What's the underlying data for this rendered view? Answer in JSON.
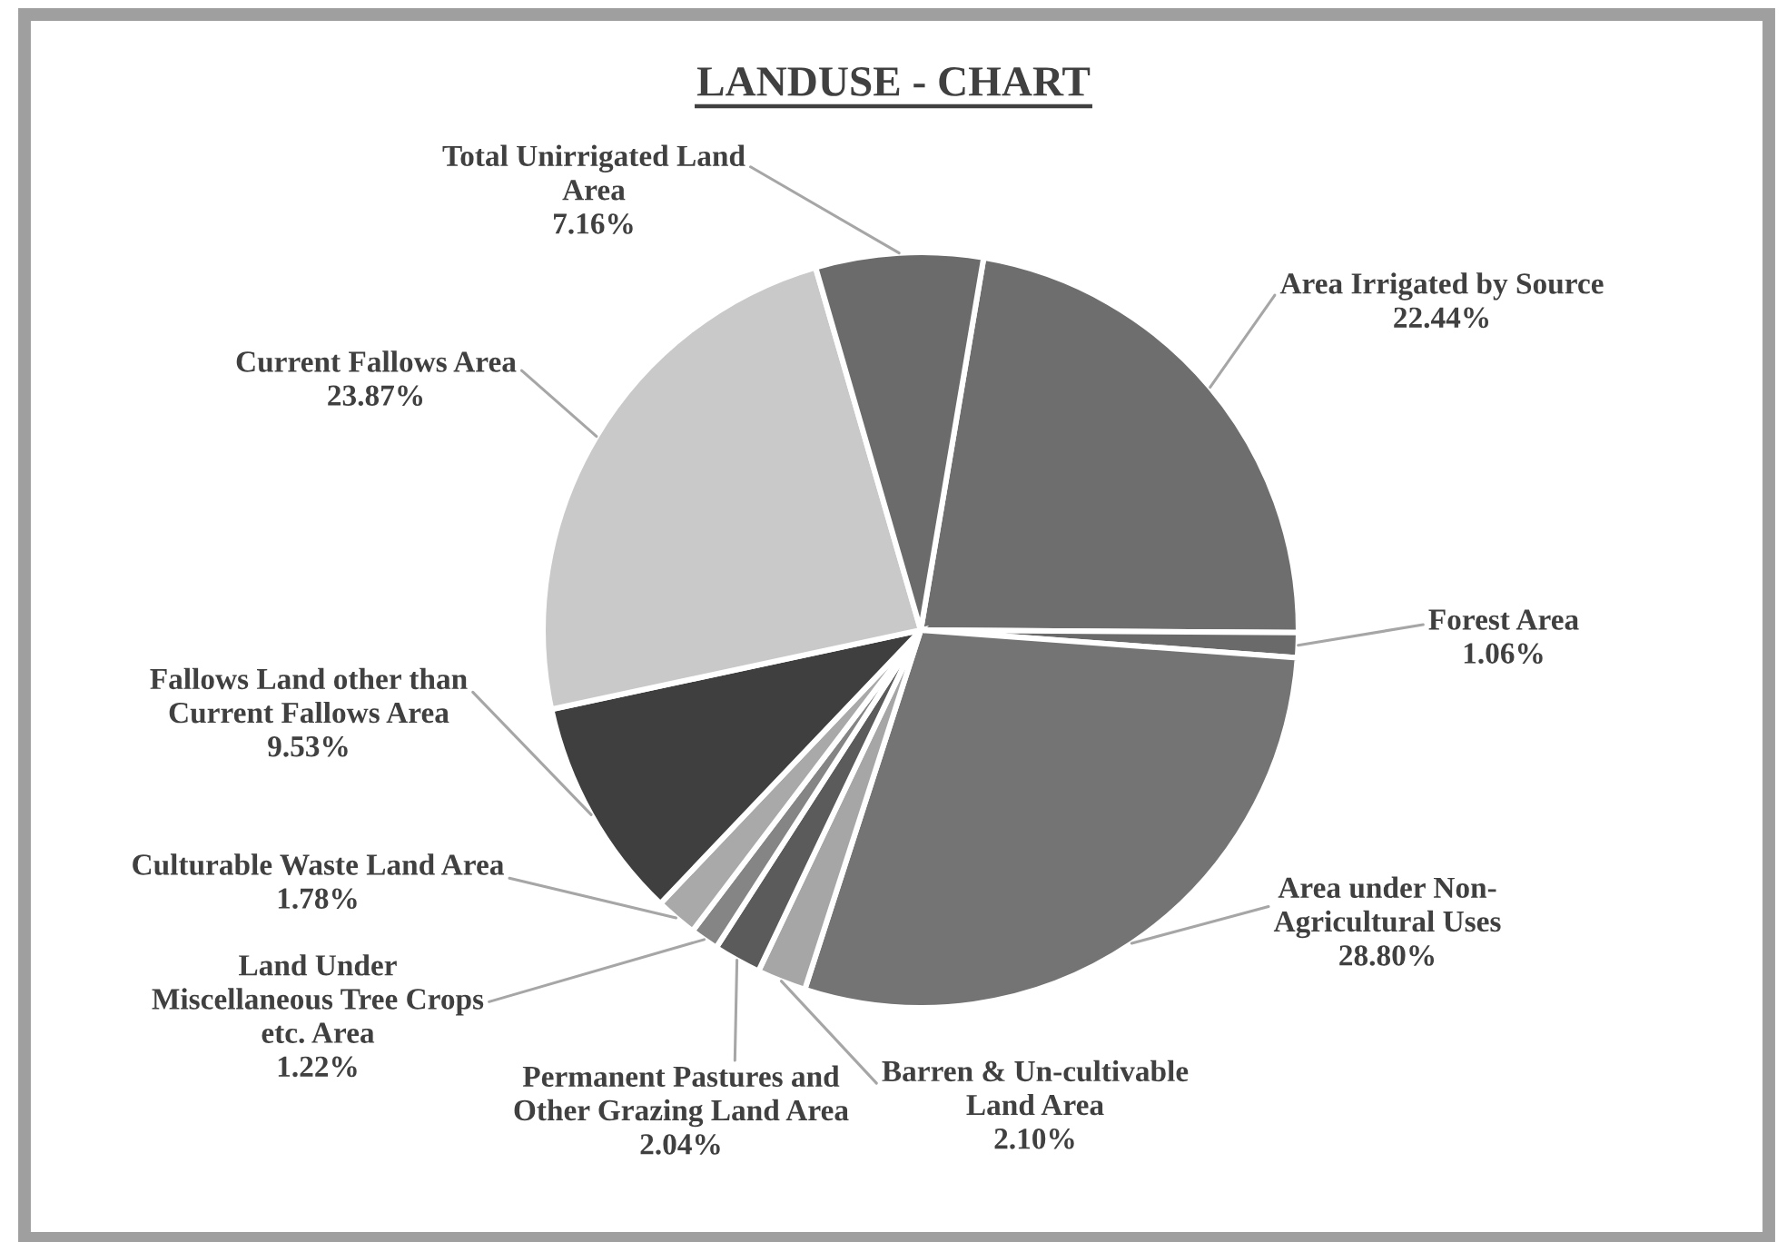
{
  "chart_data": {
    "type": "pie",
    "title": "LANDUSE - CHART",
    "categories": [
      "Area Irrigated by Source",
      "Forest Area",
      "Area under Non-\nAgricultural Uses",
      "Barren & Un-cultivable\nLand Area",
      "Permanent Pastures and\nOther Grazing Land Area",
      "Land Under\nMiscellaneous Tree Crops\netc. Area",
      "Culturable Waste Land Area",
      "Fallows Land other than\nCurrent Fallows Area",
      "Current Fallows Area",
      "Total Unirrigated Land\nArea"
    ],
    "values": [
      22.44,
      1.06,
      28.8,
      2.1,
      2.04,
      1.22,
      1.78,
      9.53,
      23.87,
      7.16
    ],
    "colors": [
      "#6e6e6e",
      "#6a6a6a",
      "#747474",
      "#a6a6a6",
      "#5b5b5b",
      "#858585",
      "#a9a9a9",
      "#3f3f3f",
      "#c9c9c9",
      "#6b6b6b"
    ],
    "value_labels": [
      "22.44%",
      "1.06%",
      "28.80%",
      "2.10%",
      "2.04%",
      "1.22%",
      "1.78%",
      "9.53%",
      "23.87%",
      "7.16%"
    ]
  }
}
